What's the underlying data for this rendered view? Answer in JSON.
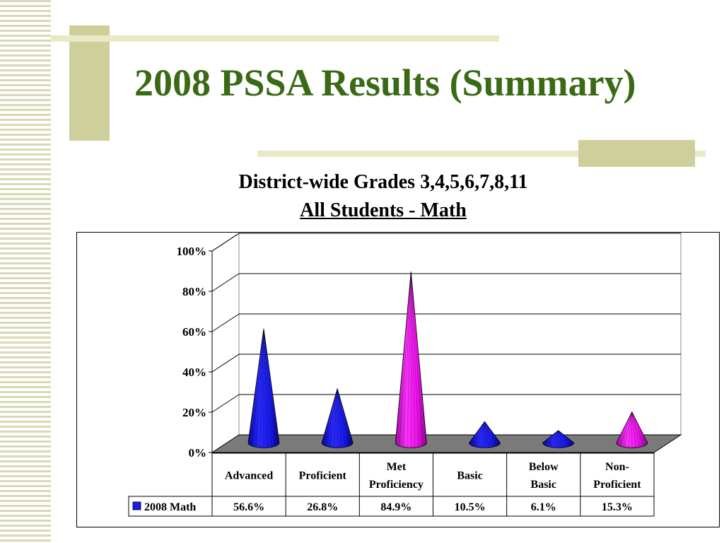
{
  "slide": {
    "title": "2008 PSSA Results (Summary)",
    "subtitle_line1": "District-wide Grades 3,4,5,6,7,8,11",
    "subtitle_line2": "All Students - Math"
  },
  "colors": {
    "title": "#3a6a15",
    "blue_cone": "#1a1aee",
    "magenta_cone": "#ee11ee",
    "floor": "#7a7a7a",
    "accent_bars": "#cfcf9c"
  },
  "chart_data": {
    "type": "bar",
    "style": "3d-cone",
    "categories": [
      [
        "Advanced"
      ],
      [
        "Proficient"
      ],
      [
        "Met",
        "Proficiency"
      ],
      [
        "Basic"
      ],
      [
        "Below",
        "Basic"
      ],
      [
        "Non-",
        "Proficient"
      ]
    ],
    "series": [
      {
        "name": "2008 Math",
        "values": [
          56.6,
          26.8,
          84.9,
          10.5,
          6.1,
          15.3
        ],
        "value_labels": [
          "56.6%",
          "26.8%",
          "84.9%",
          "10.5%",
          "6.1%",
          "15.3%"
        ]
      }
    ],
    "cone_colors": [
      "#1a1aee",
      "#1a1aee",
      "#ee11ee",
      "#1a1aee",
      "#1a1aee",
      "#ee11ee"
    ],
    "yticks": [
      "0%",
      "20%",
      "40%",
      "60%",
      "80%",
      "100%"
    ],
    "ylim": [
      0,
      100
    ],
    "grid": true,
    "legend": "data-table"
  }
}
